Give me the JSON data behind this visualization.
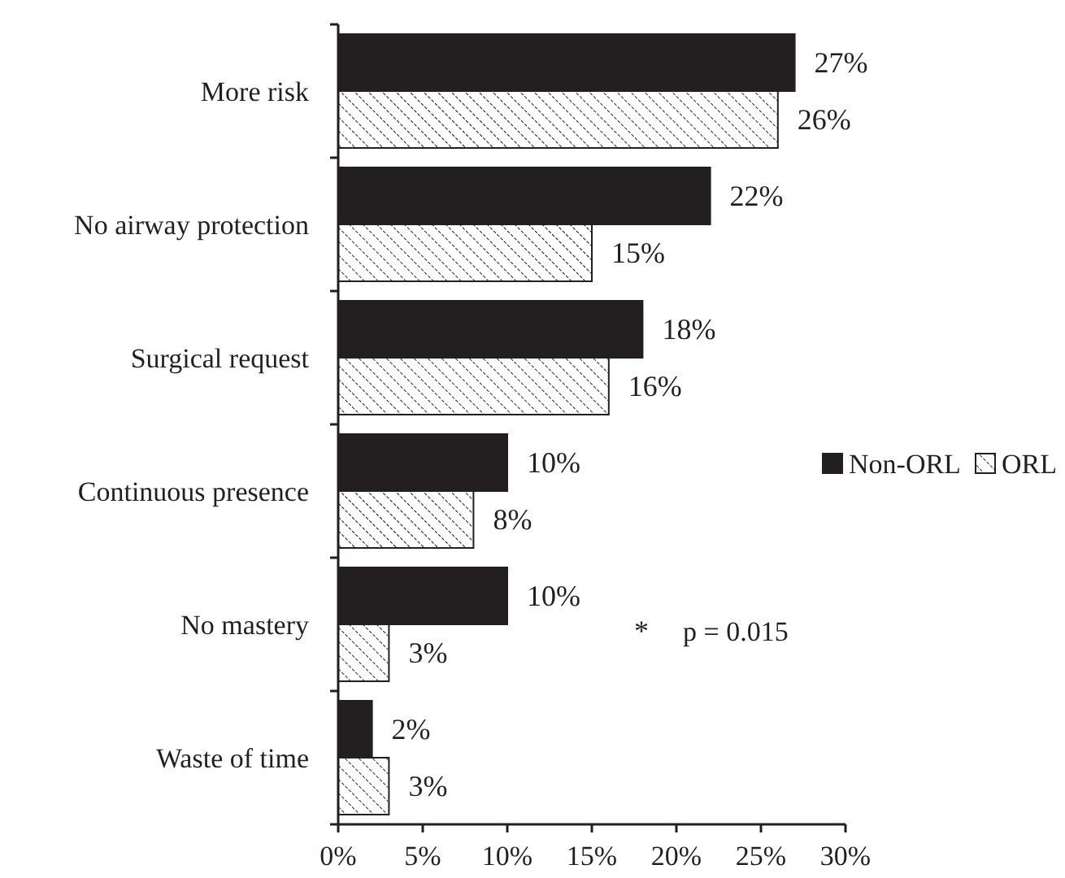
{
  "chart_data": {
    "type": "bar",
    "orientation": "horizontal",
    "categories": [
      "More risk",
      "No airway protection",
      "Surgical request",
      "Continuous presence",
      "No mastery",
      "Waste of time"
    ],
    "series": [
      {
        "name": "Non-ORL",
        "color": "#231f20",
        "values": [
          27,
          22,
          18,
          10,
          10,
          2
        ],
        "value_labels": [
          "27%",
          "22%",
          "18%",
          "10%",
          "10%",
          "2%"
        ]
      },
      {
        "name": "ORL",
        "color": "#ffffff",
        "values": [
          26,
          15,
          16,
          8,
          3,
          3
        ],
        "value_labels": [
          "26%",
          "15%",
          "16%",
          "8%",
          "3%",
          "3%"
        ]
      }
    ],
    "xlim": [
      0,
      30
    ],
    "xticks": [
      {
        "value": 0,
        "label": "0%"
      },
      {
        "value": 5,
        "label": "5%"
      },
      {
        "value": 10,
        "label": "10%"
      },
      {
        "value": 15,
        "label": "15%"
      },
      {
        "value": 20,
        "label": "20%"
      },
      {
        "value": 25,
        "label": "25%"
      },
      {
        "value": 30,
        "label": "30%"
      }
    ],
    "annotations": [
      "*",
      "p = 0.015"
    ],
    "legend": "right",
    "grid": false
  }
}
